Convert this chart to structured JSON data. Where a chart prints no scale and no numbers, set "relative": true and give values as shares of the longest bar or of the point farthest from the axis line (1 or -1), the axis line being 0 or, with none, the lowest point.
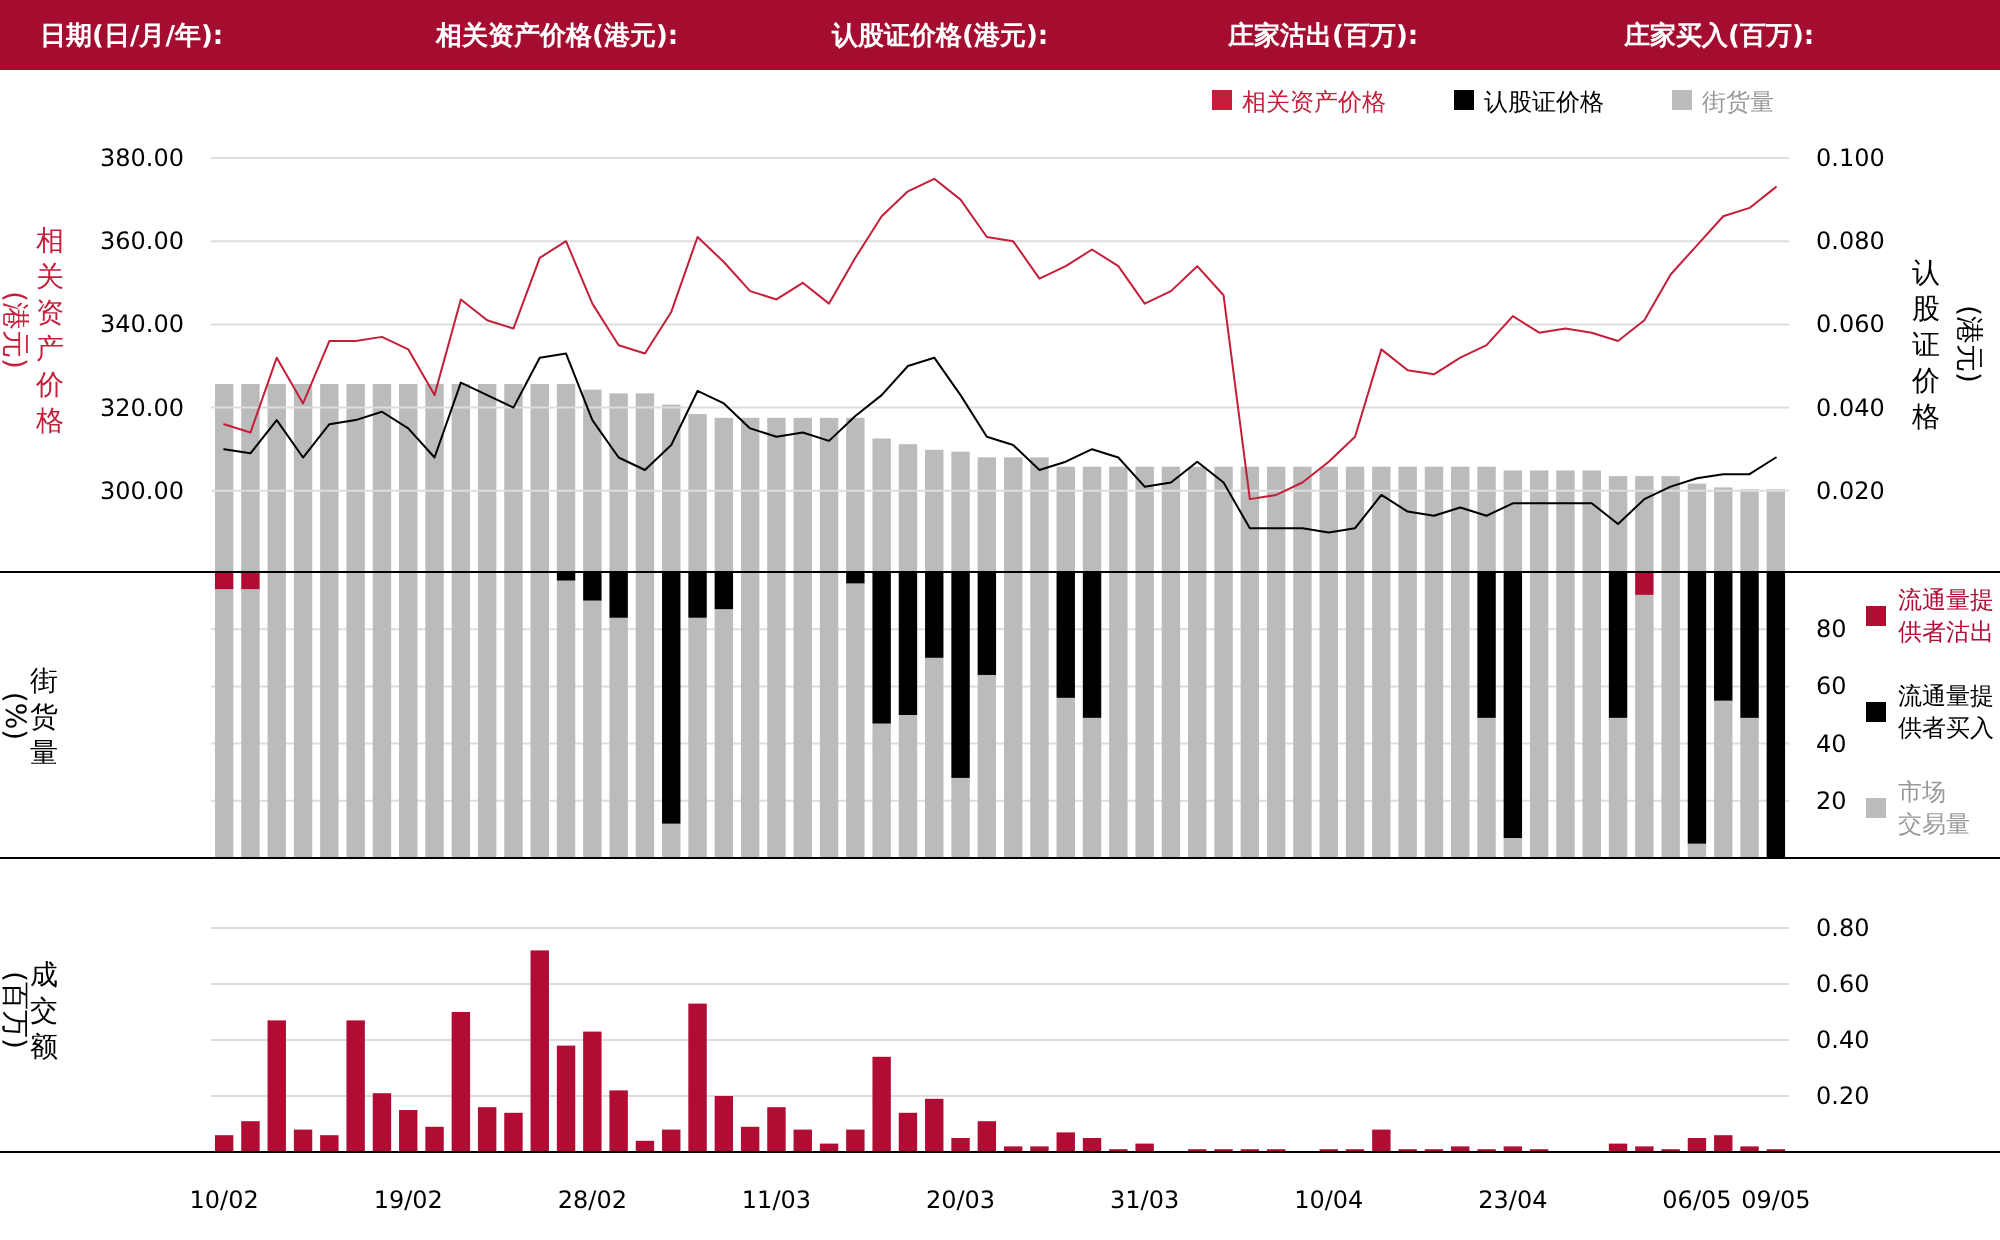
{
  "chart_data": [
    {
      "type": "other",
      "annotations": [
        "日期(日/月/年):",
        "相关资产价格(港元):",
        "认股证价格(港元):",
        "庄家沽出(百万):",
        "庄家买入(百万):"
      ]
    },
    {
      "type": "bar",
      "relative": true,
      "tick_labels": false,
      "legend": "top right",
      "categories": [
        null,
        null,
        null,
        null,
        null,
        null,
        null,
        null,
        null,
        null,
        null,
        null,
        null,
        null,
        null,
        null,
        null,
        null,
        null,
        null,
        null,
        null,
        null,
        null,
        null,
        null,
        null,
        null,
        null,
        null,
        null,
        null,
        null,
        null,
        null,
        null,
        null,
        null,
        null,
        null,
        null,
        null,
        null,
        null,
        null,
        null,
        null,
        null,
        null,
        null,
        null,
        null,
        null,
        null,
        null,
        null,
        null,
        null,
        null,
        null
      ],
      "series": [
        {
          "name": "街货量",
          "color": "#bbbbbb",
          "values": [
            1,
            1,
            1,
            1,
            1,
            1,
            1,
            1,
            1,
            1,
            1,
            1,
            1,
            1,
            0.97,
            0.95,
            0.95,
            0.89,
            0.84,
            0.82,
            0.82,
            0.82,
            0.82,
            0.82,
            0.82,
            0.71,
            0.68,
            0.65,
            0.64,
            0.61,
            0.61,
            0.61,
            0.56,
            0.56,
            0.56,
            0.56,
            0.56,
            0.56,
            0.56,
            0.56,
            0.56,
            0.56,
            0.56,
            0.56,
            0.56,
            0.56,
            0.56,
            0.56,
            0.56,
            0.54,
            0.54,
            0.54,
            0.54,
            0.51,
            0.51,
            0.51,
            0.47,
            0.45,
            0.44,
            0.44
          ]
        }
      ]
    },
    {
      "type": "line",
      "ylabel": "相关资产价格(港元)",
      "y2label": "认股证价格(港元)",
      "ylim": [
        280,
        380
      ],
      "yticks": [
        {
          "value": 300,
          "label": "300.00"
        },
        {
          "value": 320,
          "label": "320.00"
        },
        {
          "value": 340,
          "label": "340.00"
        },
        {
          "value": 360,
          "label": "360.00"
        },
        {
          "value": 380,
          "label": "380.00"
        }
      ],
      "y2lim": [
        0,
        0.1
      ],
      "y2ticks": [
        {
          "value": 0.02,
          "label": "0.020"
        },
        {
          "value": 0.04,
          "label": "0.040"
        },
        {
          "value": 0.06,
          "label": "0.060"
        },
        {
          "value": 0.08,
          "label": "0.080"
        },
        {
          "value": 0.1,
          "label": "0.100"
        }
      ],
      "grid": "y",
      "legend": "top right",
      "tick_labels": "y",
      "categories": [
        null,
        null,
        null,
        null,
        null,
        null,
        null,
        null,
        null,
        null,
        null,
        null,
        null,
        null,
        null,
        null,
        null,
        null,
        null,
        null,
        null,
        null,
        null,
        null,
        null,
        null,
        null,
        null,
        null,
        null,
        null,
        null,
        null,
        null,
        null,
        null,
        null,
        null,
        null,
        null,
        null,
        null,
        null,
        null,
        null,
        null,
        null,
        null,
        null,
        null,
        null,
        null,
        null,
        null,
        null,
        null,
        null,
        null,
        null,
        null
      ],
      "series": [
        {
          "name": "相关资产价格",
          "color": "#c41e3a",
          "values": [
            316,
            314,
            332,
            321,
            336,
            336,
            337,
            334,
            323,
            346,
            341,
            339,
            356,
            360,
            345,
            335,
            333,
            343,
            361,
            355,
            348,
            346,
            350,
            345,
            356,
            366,
            372,
            375,
            370,
            361,
            360,
            351,
            354,
            358,
            354,
            345,
            348,
            354,
            347,
            298,
            299,
            302,
            307,
            313,
            334,
            329,
            328,
            332,
            335,
            342,
            338,
            339,
            338,
            336,
            341,
            352,
            359,
            366,
            368,
            373
          ]
        },
        {
          "name": "认股证价格",
          "color": "#000000",
          "axis": "y2",
          "values": [
            0.03,
            0.029,
            0.037,
            0.028,
            0.036,
            0.037,
            0.039,
            0.035,
            0.028,
            0.046,
            0.043,
            0.04,
            0.052,
            0.053,
            0.037,
            0.028,
            0.025,
            0.031,
            0.044,
            0.041,
            0.035,
            0.033,
            0.034,
            0.032,
            0.038,
            0.043,
            0.05,
            0.052,
            0.043,
            0.033,
            0.031,
            0.025,
            0.027,
            0.03,
            0.028,
            0.021,
            0.022,
            0.027,
            0.022,
            0.011,
            0.011,
            0.011,
            0.01,
            0.011,
            0.019,
            0.015,
            0.014,
            0.016,
            0.014,
            0.017,
            0.017,
            0.017,
            0.017,
            0.012,
            0.018,
            0.021,
            0.023,
            0.024,
            0.024,
            0.028
          ]
        }
      ]
    },
    {
      "type": "bar",
      "stacked": true,
      "ylabel": "街货量(%)",
      "ylim": [
        0,
        100
      ],
      "yticks": [
        20,
        40,
        60,
        80
      ],
      "grid": "y",
      "legend": "right",
      "tick_labels": "y",
      "categories": [
        null,
        null,
        null,
        null,
        null,
        null,
        null,
        null,
        null,
        null,
        null,
        null,
        null,
        null,
        null,
        null,
        null,
        null,
        null,
        null,
        null,
        null,
        null,
        null,
        null,
        null,
        null,
        null,
        null,
        null,
        null,
        null,
        null,
        null,
        null,
        null,
        null,
        null,
        null,
        null,
        null,
        null,
        null,
        null,
        null,
        null,
        null,
        null,
        null,
        null,
        null,
        null,
        null,
        null,
        null,
        null,
        null,
        null,
        null,
        null
      ],
      "series": [
        {
          "name": "市场交易量",
          "color": "#bbbbbb",
          "values": [
            94,
            94,
            100,
            100,
            100,
            100,
            100,
            100,
            100,
            100,
            100,
            100,
            100,
            97,
            90,
            84,
            100,
            12,
            84,
            87,
            100,
            100,
            100,
            100,
            96,
            47,
            50,
            70,
            28,
            64,
            100,
            100,
            56,
            49,
            100,
            100,
            100,
            100,
            100,
            100,
            100,
            100,
            100,
            100,
            100,
            100,
            100,
            100,
            49,
            7,
            100,
            100,
            100,
            49,
            92,
            100,
            5,
            55,
            49,
            0
          ]
        },
        {
          "name": "流通量提供者沽出",
          "color": "#b00c34",
          "values": [
            6,
            6,
            0,
            0,
            0,
            0,
            0,
            0,
            0,
            0,
            0,
            0,
            0,
            0,
            0,
            0,
            0,
            0,
            0,
            0,
            0,
            0,
            0,
            0,
            0,
            0,
            0,
            0,
            0,
            0,
            0,
            0,
            0,
            0,
            0,
            0,
            0,
            0,
            0,
            0,
            0,
            0,
            0,
            0,
            0,
            0,
            0,
            0,
            0,
            0,
            0,
            0,
            0,
            0,
            8,
            0,
            0,
            0,
            0,
            0
          ]
        },
        {
          "name": "流通量提供者买入",
          "color": "#000000",
          "values": [
            0,
            0,
            0,
            0,
            0,
            0,
            0,
            0,
            0,
            0,
            0,
            0,
            0,
            3,
            10,
            16,
            0,
            88,
            16,
            13,
            0,
            0,
            0,
            0,
            4,
            53,
            50,
            30,
            72,
            36,
            0,
            0,
            44,
            51,
            0,
            0,
            0,
            0,
            0,
            0,
            0,
            0,
            0,
            0,
            0,
            0,
            0,
            0,
            51,
            93,
            0,
            0,
            0,
            51,
            0,
            0,
            95,
            45,
            51,
            100
          ]
        }
      ]
    },
    {
      "type": "bar",
      "ylabel": "成交额(百万)",
      "ylim": [
        0,
        0.8
      ],
      "yticks": [
        {
          "value": 0.2,
          "label": "0.20"
        },
        {
          "value": 0.4,
          "label": "0.40"
        },
        {
          "value": 0.6,
          "label": "0.60"
        },
        {
          "value": 0.8,
          "label": "0.80"
        }
      ],
      "grid": "y",
      "color": "#b00c34",
      "categories": [
        "10/02",
        null,
        null,
        null,
        null,
        null,
        null,
        "19/02",
        null,
        null,
        null,
        null,
        null,
        null,
        "28/02",
        null,
        null,
        null,
        null,
        null,
        null,
        "11/03",
        null,
        null,
        null,
        null,
        null,
        null,
        "20/03",
        null,
        null,
        null,
        null,
        null,
        null,
        "31/03",
        null,
        null,
        null,
        null,
        null,
        null,
        "10/04",
        null,
        null,
        null,
        null,
        null,
        null,
        "23/04",
        null,
        null,
        null,
        null,
        null,
        null,
        "06/05",
        null,
        null,
        "09/05"
      ],
      "values": [
        0.06,
        0.11,
        0.47,
        0.08,
        0.06,
        0.47,
        0.21,
        0.15,
        0.09,
        0.5,
        0.16,
        0.14,
        0.72,
        0.38,
        0.43,
        0.22,
        0.04,
        0.08,
        0.53,
        0.2,
        0.09,
        0.16,
        0.08,
        0.03,
        0.08,
        0.34,
        0.14,
        0.19,
        0.05,
        0.11,
        0.02,
        0.02,
        0.07,
        0.05,
        0.01,
        0.03,
        0,
        0.01,
        0.01,
        0.01,
        0.01,
        0,
        0.01,
        0.01,
        0.08,
        0.01,
        0.01,
        0.02,
        0.01,
        0.02,
        0.01,
        0,
        0,
        0.03,
        0.02,
        0.01,
        0.05,
        0.06,
        0.02,
        0.01
      ]
    }
  ]
}
